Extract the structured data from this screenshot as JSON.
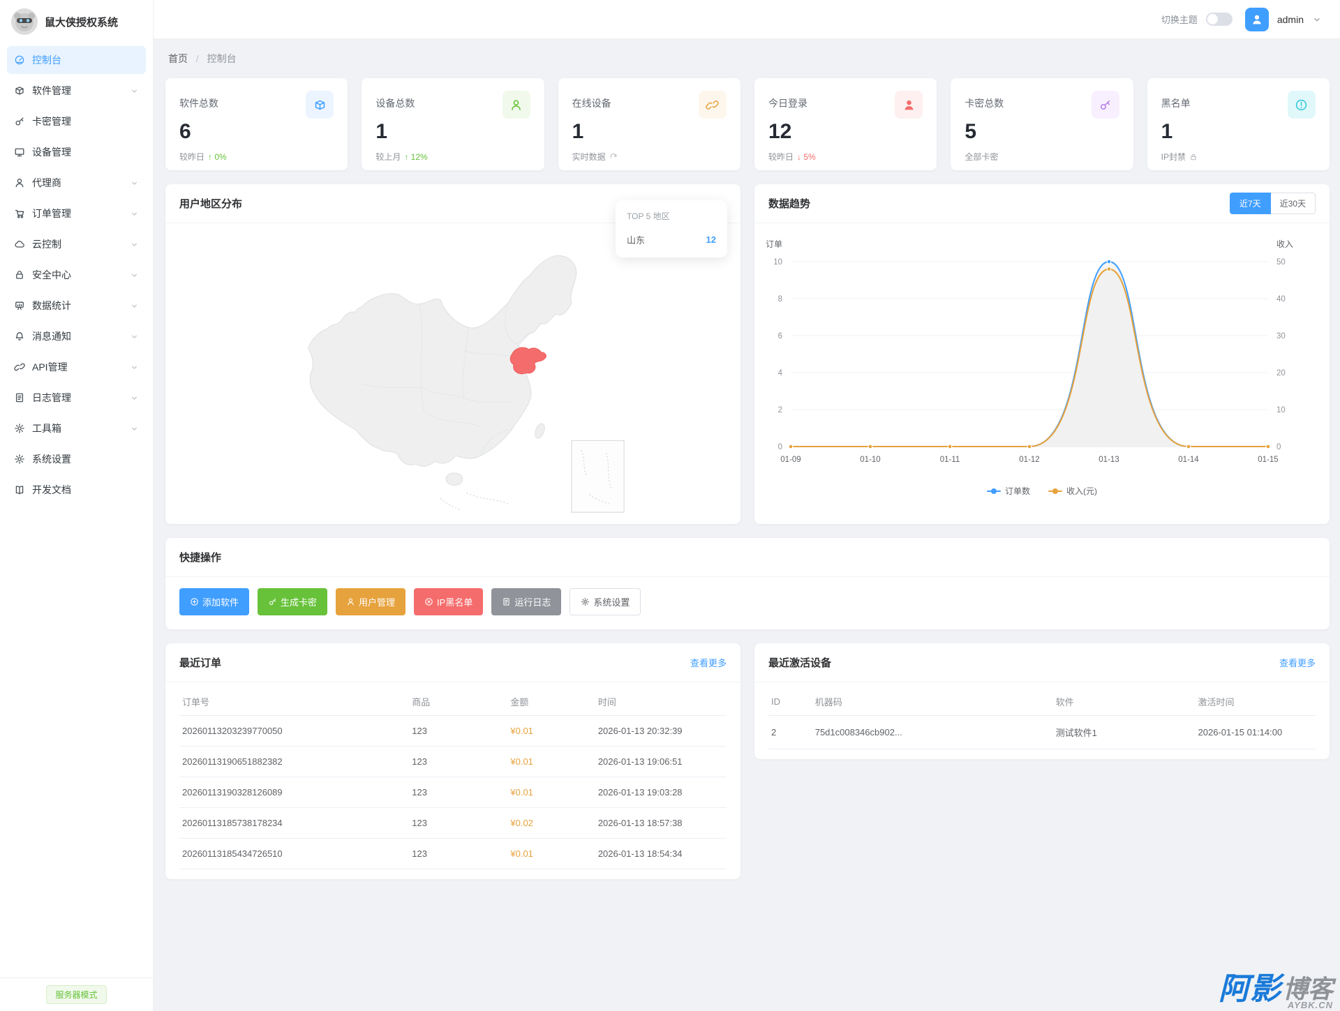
{
  "app": {
    "title": "鼠大侠授权系统"
  },
  "header": {
    "theme_toggle_label": "切换主题",
    "theme_toggle_on": false,
    "username": "admin"
  },
  "breadcrumb": {
    "items": [
      "首页",
      "控制台"
    ]
  },
  "sidebar": {
    "items": [
      {
        "label": "控制台",
        "icon": "dashboard",
        "active": true,
        "expandable": false
      },
      {
        "label": "软件管理",
        "icon": "box",
        "active": false,
        "expandable": true
      },
      {
        "label": "卡密管理",
        "icon": "key",
        "active": false,
        "expandable": false
      },
      {
        "label": "设备管理",
        "icon": "monitor",
        "active": false,
        "expandable": false
      },
      {
        "label": "代理商",
        "icon": "user",
        "active": false,
        "expandable": true
      },
      {
        "label": "订单管理",
        "icon": "cart",
        "active": false,
        "expandable": true
      },
      {
        "label": "云控制",
        "icon": "cloud",
        "active": false,
        "expandable": true
      },
      {
        "label": "安全中心",
        "icon": "lock",
        "active": false,
        "expandable": true
      },
      {
        "label": "数据统计",
        "icon": "chart",
        "active": false,
        "expandable": true
      },
      {
        "label": "消息通知",
        "icon": "bell",
        "active": false,
        "expandable": true
      },
      {
        "label": "API管理",
        "icon": "api",
        "active": false,
        "expandable": true
      },
      {
        "label": "日志管理",
        "icon": "doc",
        "active": false,
        "expandable": true
      },
      {
        "label": "工具箱",
        "icon": "gear",
        "active": false,
        "expandable": true
      },
      {
        "label": "系统设置",
        "icon": "gear",
        "active": false,
        "expandable": false
      },
      {
        "label": "开发文档",
        "icon": "book",
        "active": false,
        "expandable": false
      }
    ],
    "footer_badge": "服务器模式"
  },
  "stats": [
    {
      "label": "软件总数",
      "value": "6",
      "footer_text": "较昨日",
      "trend_dir": "up",
      "trend_text": "0%",
      "footer_icon": "",
      "icon": "box",
      "icon_color": "#409eff",
      "icon_bg": "#ecf5ff"
    },
    {
      "label": "设备总数",
      "value": "1",
      "footer_text": "较上月",
      "trend_dir": "up",
      "trend_text": "12%",
      "footer_icon": "",
      "icon": "user",
      "icon_color": "#67c23a",
      "icon_bg": "#f0f9eb"
    },
    {
      "label": "在线设备",
      "value": "1",
      "footer_text": "实时数据",
      "trend_dir": "",
      "trend_text": "",
      "footer_icon": "refresh",
      "icon": "api",
      "icon_color": "#e6a23c",
      "icon_bg": "#fdf6ec"
    },
    {
      "label": "今日登录",
      "value": "12",
      "footer_text": "较昨日",
      "trend_dir": "down",
      "trend_text": "5%",
      "footer_icon": "",
      "icon": "user-filled",
      "icon_color": "#f56c6c",
      "icon_bg": "#fef0f0"
    },
    {
      "label": "卡密总数",
      "value": "5",
      "footer_text": "全部卡密",
      "trend_dir": "",
      "trend_text": "",
      "footer_icon": "",
      "icon": "key",
      "icon_color": "#b37feb",
      "icon_bg": "#f9f0ff"
    },
    {
      "label": "黑名单",
      "value": "1",
      "footer_text": "IP封禁",
      "trend_dir": "",
      "trend_text": "",
      "footer_icon": "lock",
      "icon": "warning",
      "icon_color": "#2ec8db",
      "icon_bg": "#e1f8fb"
    }
  ],
  "map_card": {
    "title": "用户地区分布",
    "highlight_region": "山东",
    "highlight_color": "#f56c6c",
    "top_regions": {
      "title": "TOP 5 地区",
      "rows": [
        {
          "name": "山东",
          "value": "12"
        }
      ]
    }
  },
  "chart_card": {
    "title": "数据趋势",
    "range_buttons": [
      {
        "label": "近7天",
        "active": true
      },
      {
        "label": "近30天",
        "active": false
      }
    ]
  },
  "chart_data": {
    "type": "line",
    "x": [
      "01-09",
      "01-10",
      "01-11",
      "01-12",
      "01-13",
      "01-14",
      "01-15"
    ],
    "series": [
      {
        "name": "订单数",
        "color": "#409eff",
        "axis": "left",
        "values": [
          0,
          0,
          0,
          0,
          10,
          0,
          0
        ]
      },
      {
        "name": "收入(元)",
        "color": "#e6a23c",
        "axis": "right",
        "values": [
          0,
          0,
          0,
          0,
          48,
          0,
          0
        ]
      }
    ],
    "left_axis": {
      "name": "订单",
      "min": 0,
      "max": 10,
      "ticks": [
        0,
        2,
        4,
        6,
        8,
        10
      ]
    },
    "right_axis": {
      "name": "收入",
      "min": 0,
      "max": 50,
      "ticks": [
        0,
        10,
        20,
        30,
        40,
        50
      ]
    },
    "legend": [
      "订单数",
      "收入(元)"
    ],
    "grid": true,
    "legend_position": "bottom"
  },
  "quick_actions": {
    "title": "快捷操作",
    "buttons": [
      {
        "label": "添加软件",
        "color": "#409eff",
        "icon": "plus-circle",
        "plain": false
      },
      {
        "label": "生成卡密",
        "color": "#67c23a",
        "icon": "key",
        "plain": false
      },
      {
        "label": "用户管理",
        "color": "#e6a23c",
        "icon": "user",
        "plain": false
      },
      {
        "label": "IP黑名单",
        "color": "#f56c6c",
        "icon": "ban",
        "plain": false
      },
      {
        "label": "运行日志",
        "color": "#909399",
        "icon": "doc",
        "plain": false
      },
      {
        "label": "系统设置",
        "color": "",
        "icon": "gear",
        "plain": true
      }
    ]
  },
  "orders_card": {
    "title": "最近订单",
    "more_label": "查看更多",
    "headers": [
      "订单号",
      "商品",
      "金额",
      "时间"
    ],
    "rows": [
      [
        "20260113203239770050",
        "123",
        "¥0.01",
        "2026-01-13 20:32:39"
      ],
      [
        "20260113190651882382",
        "123",
        "¥0.01",
        "2026-01-13 19:06:51"
      ],
      [
        "20260113190328126089",
        "123",
        "¥0.01",
        "2026-01-13 19:03:28"
      ],
      [
        "20260113185738178234",
        "123",
        "¥0.02",
        "2026-01-13 18:57:38"
      ],
      [
        "20260113185434726510",
        "123",
        "¥0.01",
        "2026-01-13 18:54:34"
      ]
    ]
  },
  "devices_card": {
    "title": "最近激活设备",
    "more_label": "查看更多",
    "headers": [
      "ID",
      "机器码",
      "软件",
      "激活时间"
    ],
    "rows": [
      [
        "2",
        "75d1c008346cb902...",
        "测试软件1",
        "2026-01-15 01:14:00"
      ]
    ]
  },
  "watermark": {
    "main_blue": "阿影",
    "main_gray": "博客",
    "sub": "AYBK.CN"
  },
  "colors": {
    "accent": "#409eff",
    "success": "#67c23a",
    "warning": "#e6a23c",
    "danger": "#f56c6c",
    "info": "#909399"
  }
}
